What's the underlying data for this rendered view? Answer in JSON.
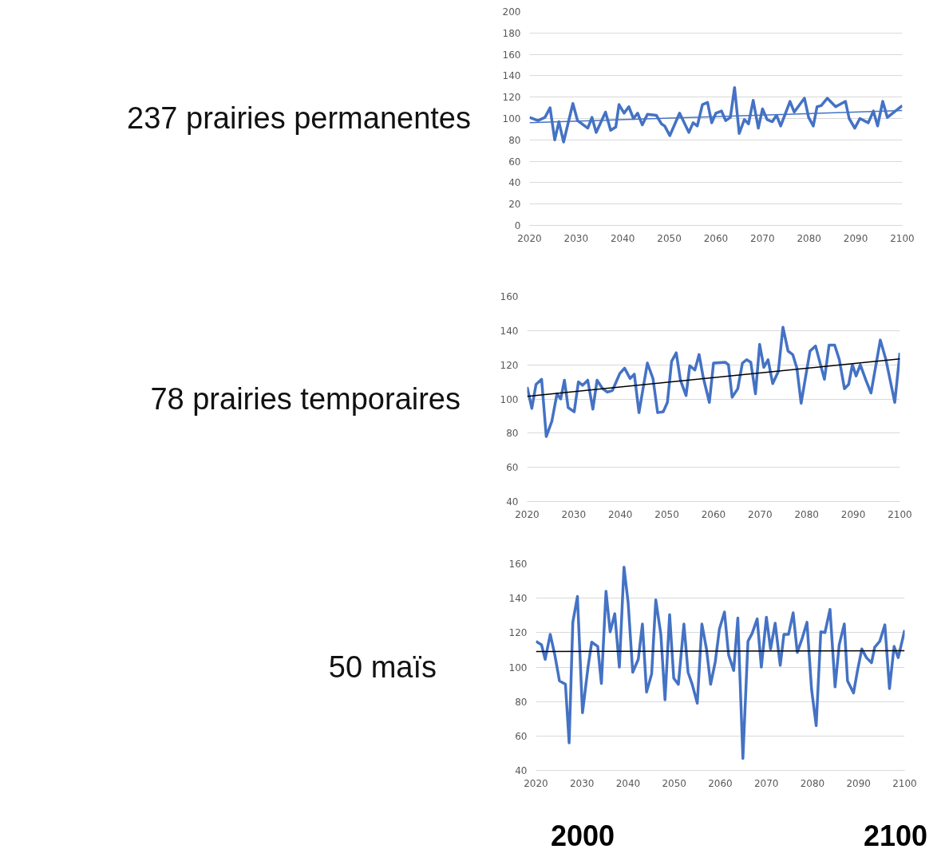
{
  "chart_data": [
    {
      "type": "line",
      "title": "237 prairies permanentes",
      "xlim": [
        2020,
        2100
      ],
      "xticks": [
        2020,
        2030,
        2040,
        2050,
        2060,
        2070,
        2080,
        2090,
        2100
      ],
      "ylim": [
        0,
        200
      ],
      "yticks": [
        0,
        20,
        40,
        60,
        80,
        100,
        120,
        140,
        160,
        180,
        200
      ],
      "grid": "y",
      "series": [
        {
          "color": "#4472c4",
          "x": [
            2020.0,
            2021.8,
            2023.3,
            2024.4,
            2025.4,
            2026.3,
            2027.3,
            2029.3,
            2030.3,
            2032.5,
            2033.4,
            2034.3,
            2036.3,
            2037.4,
            2038.5,
            2039.2,
            2040.3,
            2041.3,
            2042.3,
            2043.2,
            2044.2,
            2045.3,
            2047.2,
            2048.3,
            2049.0,
            2050.1,
            2052.2,
            2054.2,
            2055.1,
            2056.0,
            2057.1,
            2058.2,
            2059.1,
            2060.0,
            2061.2,
            2062.1,
            2063.1,
            2064.0,
            2065.0,
            2066.1,
            2067.0,
            2068.0,
            2069.1,
            2070.0,
            2071.0,
            2072.1,
            2073.0,
            2073.9,
            2075.9,
            2076.8,
            2079.0,
            2079.9,
            2080.9,
            2081.7,
            2082.6,
            2083.9,
            2085.7,
            2087.8,
            2088.6,
            2089.8,
            2090.9,
            2092.7,
            2093.8,
            2094.7,
            2095.8,
            2096.8,
            2098.8,
            2100.0
          ],
          "values": [
            101,
            98,
            101,
            110,
            80,
            97,
            78,
            114,
            98,
            91,
            101,
            87,
            106,
            89,
            92,
            113,
            105,
            111,
            100,
            105,
            94,
            104,
            103,
            95,
            93,
            84,
            105,
            87,
            96,
            93,
            113,
            115,
            96,
            105,
            107,
            98,
            101,
            129,
            86,
            99,
            95,
            117,
            91,
            109,
            99,
            97,
            103,
            93,
            116,
            106,
            119,
            101,
            93,
            111,
            112,
            119,
            111,
            116,
            100,
            91,
            100,
            96,
            107,
            93,
            116,
            101,
            108,
            112
          ]
        },
        {
          "color": "#4472c4",
          "x": [
            2020,
            2100
          ],
          "values": [
            96,
            107.5
          ]
        }
      ]
    },
    {
      "type": "line",
      "title": "78 prairies temporaires",
      "xlim": [
        2020,
        2100
      ],
      "xticks": [
        2020,
        2030,
        2040,
        2050,
        2060,
        2070,
        2080,
        2090,
        2100
      ],
      "ylim": [
        40,
        160
      ],
      "yticks": [
        40,
        60,
        80,
        100,
        120,
        140,
        160
      ],
      "grid": "y",
      "series": [
        {
          "color": "#4472c4",
          "x": [
            2020,
            2021,
            2021.9,
            2023.1,
            2024.1,
            2025.3,
            2026.4,
            2027.2,
            2028,
            2028.8,
            2030.1,
            2031,
            2031.9,
            2033,
            2034.1,
            2035,
            2036.2,
            2037.2,
            2038.3,
            2039.9,
            2040.9,
            2042.1,
            2043,
            2044,
            2045.8,
            2047,
            2048,
            2049.2,
            2050.1,
            2051,
            2052,
            2052.9,
            2054.1,
            2054.9,
            2056,
            2056.9,
            2057.8,
            2059.1,
            2060,
            2062.5,
            2063.2,
            2064,
            2065.2,
            2066.2,
            2067.1,
            2068,
            2069,
            2069.9,
            2070.8,
            2071.7,
            2072.7,
            2073.9,
            2074.9,
            2076,
            2077,
            2077.9,
            2078.8,
            2080.7,
            2081.9,
            2083.8,
            2084.8,
            2086,
            2087,
            2088.1,
            2089,
            2089.8,
            2090.6,
            2091.5,
            2092.7,
            2093.8,
            2095.8,
            2097,
            2098.9,
            2100
          ],
          "values": [
            107,
            94.5,
            108.5,
            111.5,
            78,
            87,
            103,
            100,
            111,
            95,
            92.5,
            110,
            108,
            111,
            94,
            111,
            106,
            104,
            105,
            115,
            118,
            112,
            114.5,
            92,
            121,
            112,
            92,
            92.5,
            98,
            122,
            127,
            111,
            102,
            119.5,
            117,
            126,
            112.5,
            98,
            121,
            121.5,
            120,
            101,
            106,
            121,
            123,
            121.5,
            103,
            132,
            118.5,
            123,
            109,
            116,
            142,
            128,
            126,
            118,
            97.5,
            128,
            131,
            111.5,
            131.5,
            131.5,
            123,
            106,
            108.5,
            120,
            113.5,
            120,
            111,
            103.5,
            134.5,
            123,
            98,
            127
          ]
        },
        {
          "color": "#000000",
          "x": [
            2020,
            2100
          ],
          "values": [
            101.5,
            123.5
          ]
        }
      ]
    },
    {
      "type": "line",
      "title": "50 maïs",
      "xlim": [
        2020,
        2100
      ],
      "xticks": [
        2020,
        2030,
        2040,
        2050,
        2060,
        2070,
        2080,
        2090,
        2100
      ],
      "ylim": [
        40,
        160
      ],
      "yticks": [
        40,
        60,
        80,
        100,
        120,
        140,
        160
      ],
      "grid": "y",
      "annotations": [
        "2000",
        "2100"
      ],
      "series": [
        {
          "color": "#4472c4",
          "x": [
            2020,
            2021.2,
            2022,
            2023.1,
            2024.1,
            2025.1,
            2026.4,
            2027.2,
            2028,
            2029,
            2030.1,
            2031.3,
            2032.1,
            2033.4,
            2034.2,
            2035.2,
            2036.1,
            2037.1,
            2038.1,
            2039.1,
            2040,
            2041,
            2042.2,
            2043.1,
            2044,
            2045.1,
            2046,
            2047.1,
            2048,
            2049,
            2049.9,
            2050.9,
            2052.1,
            2053,
            2053.9,
            2055,
            2056,
            2057,
            2057.9,
            2058.9,
            2059.8,
            2060.9,
            2061.8,
            2062.9,
            2063.8,
            2064.9,
            2066,
            2066.9,
            2068,
            2068.9,
            2070,
            2070.9,
            2071.9,
            2073,
            2073.8,
            2074.8,
            2075.8,
            2076.7,
            2077.8,
            2078.8,
            2079.8,
            2080.8,
            2081.8,
            2082.7,
            2083.8,
            2084.9,
            2085.8,
            2086.9,
            2087.6,
            2088.9,
            2089.8,
            2090.7,
            2091.7,
            2092.8,
            2093.5,
            2094.6,
            2095.7,
            2096.7,
            2097.7,
            2098.6,
            2100
          ],
          "values": [
            115,
            113,
            104.5,
            119,
            107,
            92,
            90,
            56,
            126,
            141,
            73.5,
            100,
            114.5,
            112,
            90.5,
            144,
            120.5,
            131,
            100,
            158,
            137.5,
            97,
            104.5,
            125,
            85.5,
            96,
            139,
            119,
            81,
            130.5,
            93.5,
            90,
            125,
            97,
            90,
            79,
            125,
            110.5,
            90,
            103,
            122,
            132,
            107,
            98,
            128.5,
            47,
            115,
            119.5,
            128,
            100,
            129,
            110.5,
            125.5,
            101,
            119,
            119,
            131.5,
            108.5,
            117,
            126,
            87,
            66,
            120.5,
            120,
            133.5,
            88.5,
            113,
            125,
            92,
            85,
            98.5,
            110.5,
            105.5,
            102.5,
            111.5,
            115,
            124.5,
            87.5,
            112,
            105.5,
            121.5
          ]
        },
        {
          "color": "#000000",
          "x": [
            2020,
            2100
          ],
          "values": [
            109,
            109.5
          ]
        }
      ]
    }
  ]
}
